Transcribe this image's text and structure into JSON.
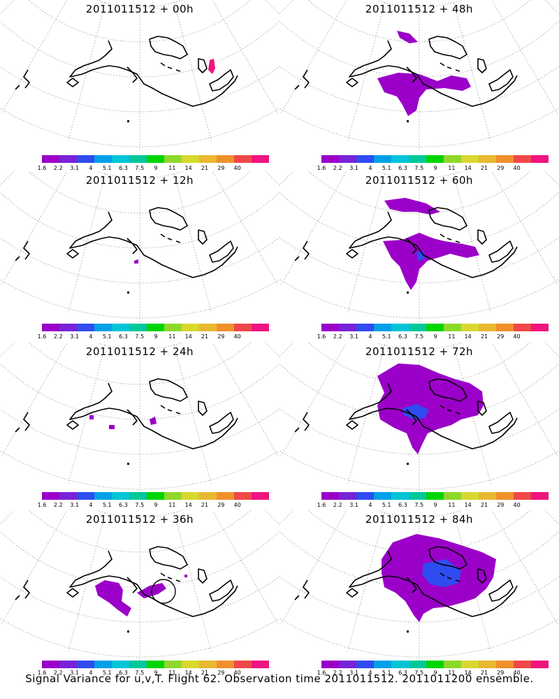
{
  "panels": [
    {
      "title": "2011011512 + 00h"
    },
    {
      "title": "2011011512 + 48h"
    },
    {
      "title": "2011011512 + 12h"
    },
    {
      "title": "2011011512 + 60h"
    },
    {
      "title": "2011011512 + 24h"
    },
    {
      "title": "2011011512 + 72h"
    },
    {
      "title": "2011011512 + 36h"
    },
    {
      "title": "2011011512 + 84h"
    }
  ],
  "colorbar": {
    "labels": [
      "1.6",
      "2.2",
      "3.1",
      "4",
      "5.1",
      "6.3",
      "7.5",
      "9",
      "11",
      "14",
      "21",
      "29",
      "40"
    ],
    "colors": [
      "#9b00c8",
      "#7a22d8",
      "#2f4cf0",
      "#00a0e8",
      "#00c4d8",
      "#00c89a",
      "#00d400",
      "#8ed82a",
      "#d8d830",
      "#e8b830",
      "#f0902a",
      "#f04848",
      "#f01480"
    ]
  },
  "footer": "Signal Variance for u,v,T. Flight 62. Observation time 2011011512. 2011011200 ensemble."
}
